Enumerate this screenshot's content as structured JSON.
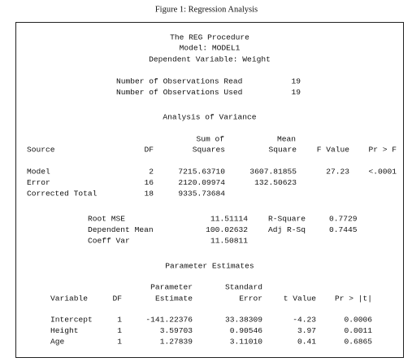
{
  "caption": "Figure 1: Regression Analysis",
  "header": {
    "procedure": "The REG Procedure",
    "model": "Model: MODEL1",
    "dependent": "Dependent Variable: Weight"
  },
  "observations": [
    [
      "Number of Observations Read",
      "19"
    ],
    [
      "Number of Observations Used",
      "19"
    ]
  ],
  "anova": {
    "title": "Analysis of Variance",
    "header_top": [
      "Sum of",
      "Mean"
    ],
    "columns": [
      "Source",
      "DF",
      "Squares",
      "Square",
      "F Value",
      "Pr > F"
    ],
    "rows": [
      [
        "Model",
        "2",
        "7215.63710",
        "3607.81855",
        "27.23",
        "<.0001"
      ],
      [
        "Error",
        "16",
        "2120.09974",
        "132.50623"
      ],
      [
        "Corrected Total",
        "18",
        "9335.73684"
      ]
    ]
  },
  "fit": [
    [
      "Root MSE",
      "11.51114",
      "R-Square",
      "0.7729"
    ],
    [
      "Dependent Mean",
      "100.02632",
      "Adj R-Sq",
      "0.7445"
    ],
    [
      "Coeff Var",
      "11.50811"
    ]
  ],
  "parameters": {
    "title": "Parameter Estimates",
    "header_top": [
      "Parameter",
      "Standard"
    ],
    "columns": [
      "Variable",
      "DF",
      "Estimate",
      "Error",
      "t Value",
      "Pr > |t|"
    ],
    "rows": [
      [
        "Intercept",
        "1",
        "-141.22376",
        "33.38309",
        "-4.23",
        "0.0006"
      ],
      [
        "Height",
        "1",
        "3.59703",
        "0.90546",
        "3.97",
        "0.0011"
      ],
      [
        "Age",
        "1",
        "1.27839",
        "3.11010",
        "0.41",
        "0.6865"
      ]
    ]
  }
}
